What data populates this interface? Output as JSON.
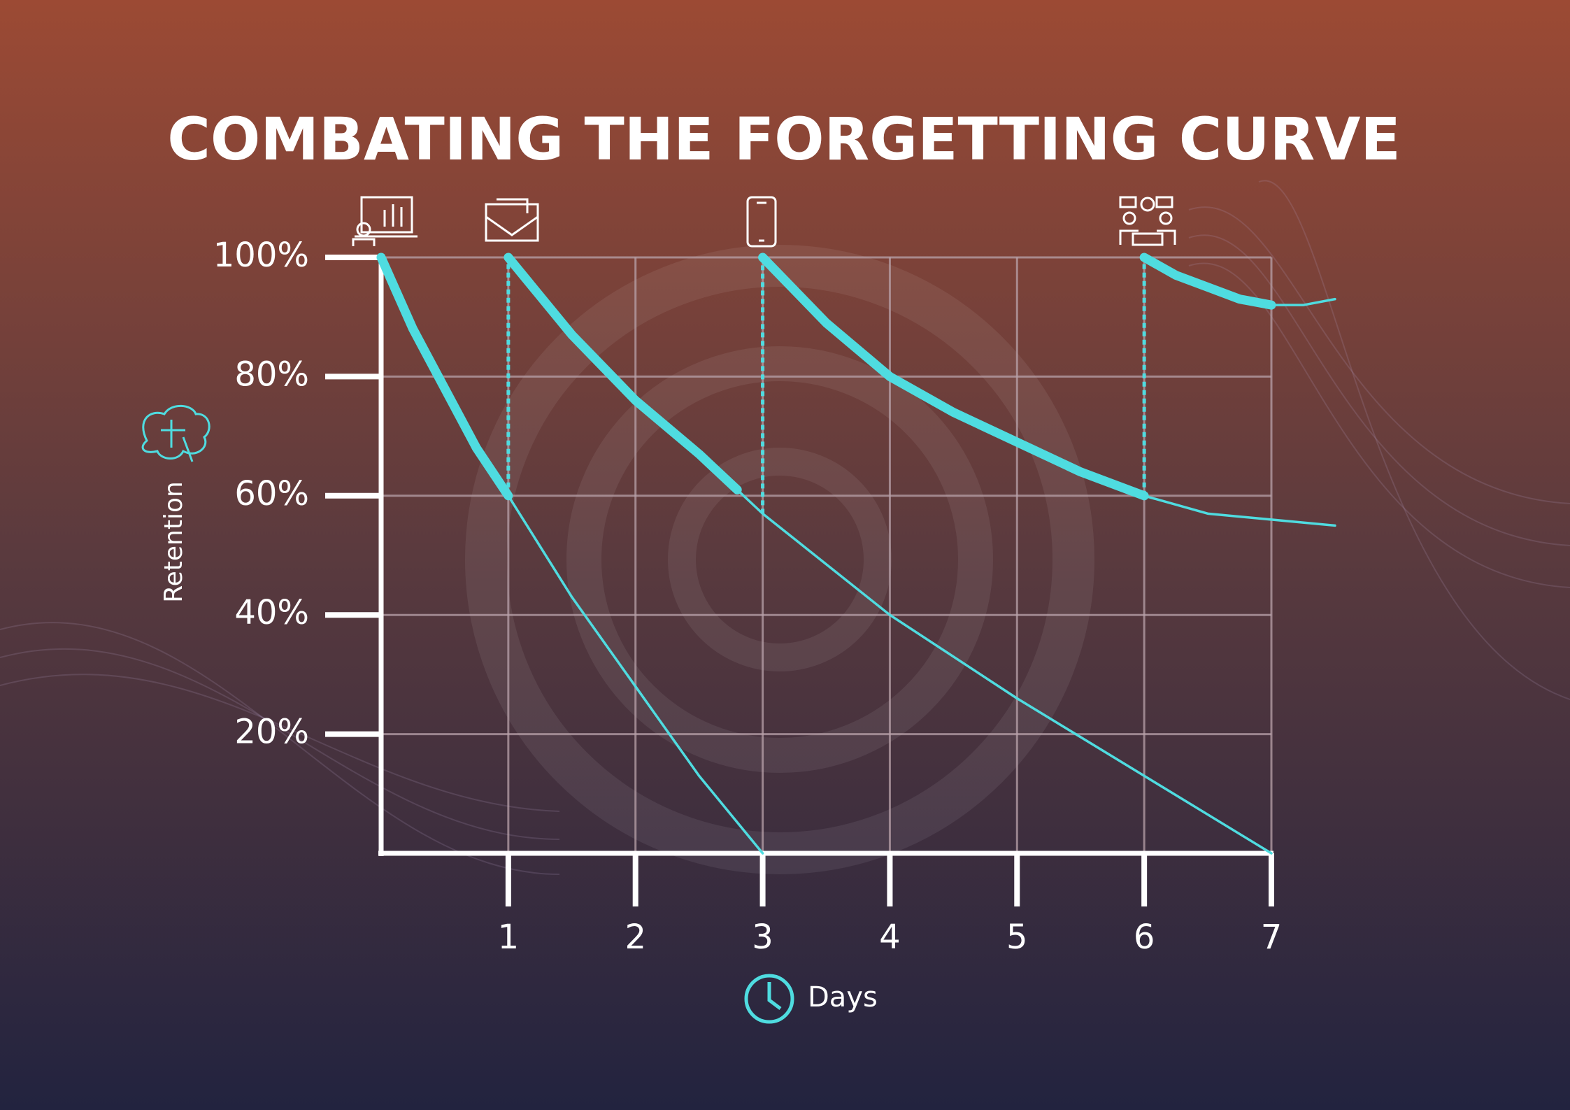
{
  "chart_data": {
    "type": "line",
    "title": "COMBATING THE FORGETTING CURVE",
    "y_label": "Retention",
    "x_label": "Days",
    "xlim": [
      0,
      7
    ],
    "xticks": [
      1,
      2,
      3,
      4,
      5,
      6,
      7
    ],
    "ylim": [
      0,
      100
    ],
    "yticks": [
      {
        "value": 20,
        "label": "20%"
      },
      {
        "value": 40,
        "label": "40%"
      },
      {
        "value": 60,
        "label": "60%"
      },
      {
        "value": 80,
        "label": "80%"
      },
      {
        "value": 100,
        "label": "100%"
      }
    ],
    "grid": true,
    "series": [
      {
        "color": "#4fdce0",
        "style": "thick",
        "x": [
          0,
          0.25,
          0.5,
          0.75,
          1
        ],
        "values": [
          100,
          88,
          78,
          68,
          60
        ]
      },
      {
        "color": "#4fdce0",
        "style": "thin",
        "x": [
          1,
          1.5,
          2,
          2.5,
          3
        ],
        "values": [
          60,
          43,
          28,
          13,
          0
        ]
      },
      {
        "color": "#4fdce0",
        "style": "thick",
        "x": [
          1,
          1.5,
          2,
          2.5,
          2.8
        ],
        "values": [
          100,
          87,
          76,
          67,
          61
        ]
      },
      {
        "color": "#4fdce0",
        "style": "thin",
        "x": [
          2.8,
          3,
          4,
          5,
          6,
          7
        ],
        "values": [
          61,
          57,
          40,
          26,
          13,
          0
        ]
      },
      {
        "color": "#4fdce0",
        "style": "thick",
        "x": [
          3,
          3.5,
          4,
          4.5,
          5,
          5.5,
          6
        ],
        "values": [
          100,
          89,
          80,
          74,
          69,
          64,
          60
        ]
      },
      {
        "color": "#4fdce0",
        "style": "thin",
        "x": [
          6,
          6.5,
          7,
          7.5
        ],
        "values": [
          60,
          57,
          56,
          55
        ]
      },
      {
        "color": "#4fdce0",
        "style": "thick",
        "x": [
          6,
          6.25,
          6.5,
          6.75,
          7
        ],
        "values": [
          100,
          97,
          95,
          93,
          92
        ]
      },
      {
        "color": "#4fdce0",
        "style": "thin",
        "x": [
          7,
          7.25,
          7.5
        ],
        "values": [
          92,
          92,
          93
        ]
      }
    ],
    "review_lines": [
      {
        "x": 1,
        "from": 60,
        "to": 100
      },
      {
        "x": 3,
        "from": 57,
        "to": 100
      },
      {
        "x": 6,
        "from": 60,
        "to": 100
      }
    ]
  }
}
